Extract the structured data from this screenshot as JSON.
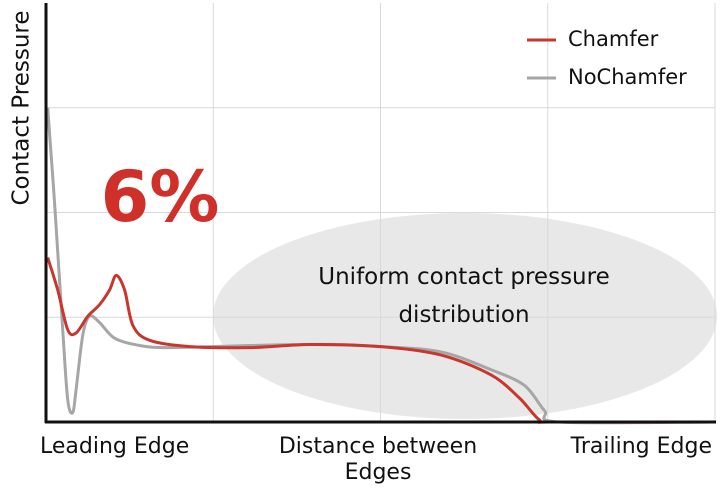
{
  "chart_data": {
    "type": "line",
    "ylabel": "Contact Pressure",
    "x_axis_labels": [
      "Leading Edge",
      "Distance between Edges",
      "Trailing Edge"
    ],
    "annotations": [
      "6%",
      "Uniform contact pressure distribution"
    ],
    "xlim": [
      0,
      4
    ],
    "ylim": [
      0,
      4
    ],
    "grid": true,
    "legend": "top-right",
    "series": [
      {
        "name": "Chamfer",
        "color": "#c8372d",
        "x": [
          0.01,
          0.07,
          0.13,
          0.18,
          0.25,
          0.32,
          0.38,
          0.42,
          0.47,
          0.52,
          0.62,
          0.86,
          1.22,
          1.58,
          2.0,
          2.36,
          2.66,
          2.83,
          2.95,
          3.04,
          4
        ],
        "values": [
          1.57,
          1.26,
          0.88,
          0.85,
          1.01,
          1.12,
          1.26,
          1.4,
          1.26,
          0.92,
          0.78,
          0.72,
          0.71,
          0.74,
          0.72,
          0.64,
          0.45,
          0.23,
          0.02,
          0,
          0
        ]
      },
      {
        "name": "NoChamfer",
        "color": "#a6a6a6",
        "x": [
          0.01,
          0.05,
          0.1,
          0.13,
          0.16,
          0.18,
          0.22,
          0.26,
          0.32,
          0.41,
          0.56,
          0.74,
          1.22,
          1.58,
          2.0,
          2.36,
          2.66,
          2.86,
          2.98,
          3.07,
          4
        ],
        "values": [
          3.0,
          2.12,
          0.88,
          0.21,
          0.09,
          0.31,
          0.83,
          1.01,
          0.95,
          0.8,
          0.73,
          0.71,
          0.73,
          0.74,
          0.72,
          0.67,
          0.5,
          0.35,
          0.11,
          0,
          0
        ]
      }
    ]
  }
}
